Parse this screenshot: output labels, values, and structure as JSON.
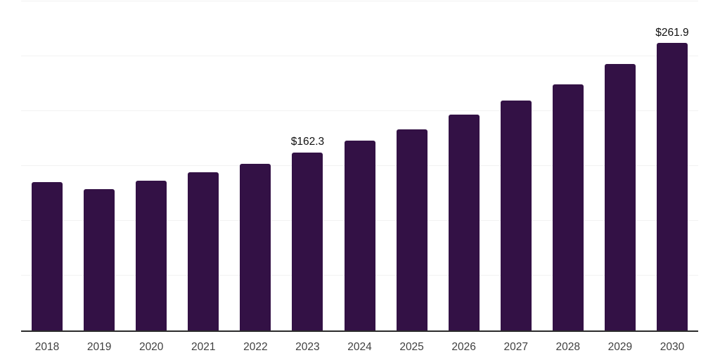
{
  "colors": {
    "background": "#ffffff",
    "bar": "#331145",
    "axis_line": "#2b2b2b",
    "gridline": "#f2f2f2",
    "tick_label": "#404040",
    "data_label": "#111111"
  },
  "chart_data": {
    "type": "bar",
    "title": "",
    "xlabel": "",
    "ylabel": "",
    "categories": [
      "2018",
      "2019",
      "2020",
      "2021",
      "2022",
      "2023",
      "2024",
      "2025",
      "2026",
      "2027",
      "2028",
      "2029",
      "2030"
    ],
    "values": [
      135.3,
      128.8,
      136.5,
      144.2,
      151.9,
      162.3,
      173.1,
      183.3,
      196.8,
      209.6,
      224.4,
      243.0,
      261.9
    ],
    "bar_labels": [
      "",
      "",
      "",
      "",
      "",
      "$162.3",
      "",
      "",
      "",
      "",
      "",
      "",
      "$261.9"
    ],
    "ylim": [
      0,
      300
    ],
    "grid_step": 50,
    "grid": "horizontal",
    "y_tick_labels_shown": false,
    "legend_position": "none",
    "currency_prefix": "$"
  }
}
